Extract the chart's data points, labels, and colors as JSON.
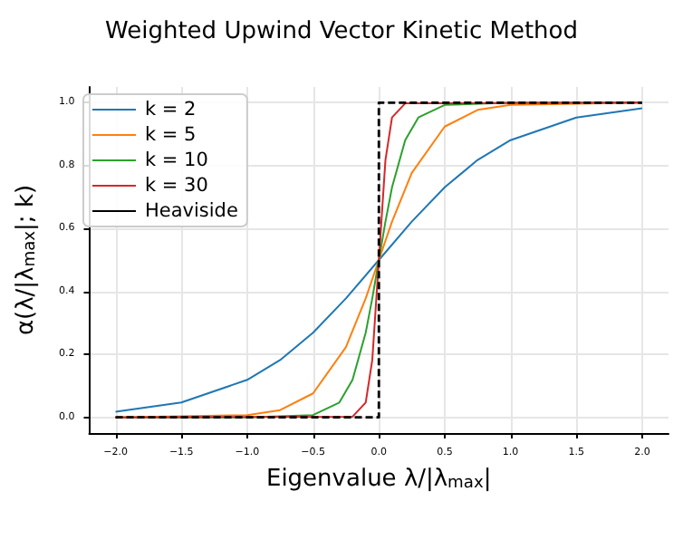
{
  "chart_data": {
    "type": "line",
    "title": "Weighted Upwind Vector Kinetic Method",
    "xlabel": "Eigenvalue λ/|λ$_{max}$|",
    "ylabel": "α(λ/|λ$_{max}$|; k)",
    "xlim": [
      -2.2,
      2.2
    ],
    "xticks": [
      {
        "value": -2,
        "label": "−2.0"
      },
      {
        "value": -1.5,
        "label": "−1.5"
      },
      {
        "value": -1,
        "label": "−1.0"
      },
      {
        "value": -0.5,
        "label": "−0.5"
      },
      {
        "value": 0,
        "label": "0.0"
      },
      {
        "value": 0.5,
        "label": "0.5"
      },
      {
        "value": 1,
        "label": "1.0"
      },
      {
        "value": 1.5,
        "label": "1.5"
      },
      {
        "value": 2,
        "label": "2.0"
      }
    ],
    "ylim": [
      -0.05,
      1.05
    ],
    "yticks": [
      {
        "value": 0,
        "label": "0.0"
      },
      {
        "value": 0.2,
        "label": "0.2"
      },
      {
        "value": 0.4,
        "label": "0.4"
      },
      {
        "value": 0.6,
        "label": "0.6"
      },
      {
        "value": 0.8,
        "label": "0.8"
      },
      {
        "value": 1,
        "label": "1.0"
      }
    ],
    "grid": true,
    "legend": "top left",
    "marker": "none",
    "series": [
      {
        "name": "k = 2",
        "color": "#1f77b4",
        "line_style": "solid",
        "x": [
          -2,
          -1.5,
          -1,
          -0.75,
          -0.5,
          -0.25,
          0,
          0.25,
          0.5,
          0.75,
          1,
          1.5,
          2
        ],
        "values": [
          0.018,
          0.047,
          0.119,
          0.182,
          0.269,
          0.378,
          0.5,
          0.622,
          0.731,
          0.818,
          0.881,
          0.953,
          0.982
        ]
      },
      {
        "name": "k = 5",
        "color": "#ff7f0e",
        "line_style": "solid",
        "x": [
          -2,
          -1,
          -0.75,
          -0.5,
          -0.25,
          -0.1,
          0,
          0.1,
          0.25,
          0.5,
          0.75,
          1,
          2
        ],
        "values": [
          0,
          0.007,
          0.023,
          0.076,
          0.223,
          0.378,
          0.5,
          0.622,
          0.777,
          0.924,
          0.977,
          0.993,
          1
        ]
      },
      {
        "name": "k = 10",
        "color": "#2ca02c",
        "line_style": "solid",
        "x": [
          -2,
          -1,
          -0.5,
          -0.3,
          -0.2,
          -0.1,
          -0.05,
          0,
          0.05,
          0.1,
          0.2,
          0.3,
          0.5,
          1,
          2
        ],
        "values": [
          0,
          0,
          0.007,
          0.047,
          0.119,
          0.269,
          0.378,
          0.5,
          0.622,
          0.731,
          0.881,
          0.953,
          0.993,
          1,
          1
        ]
      },
      {
        "name": "k = 30",
        "color": "#d62728",
        "line_style": "solid",
        "x": [
          -2,
          -0.2,
          -0.1,
          -0.05,
          0,
          0.05,
          0.1,
          0.2,
          2
        ],
        "values": [
          0,
          0.002,
          0.047,
          0.182,
          0.5,
          0.818,
          0.953,
          0.998,
          1
        ]
      },
      {
        "name": "Heaviside",
        "color": "#000000",
        "line_style": "dashed",
        "x": [
          -2,
          0,
          0,
          2
        ],
        "values": [
          0,
          0,
          1,
          1
        ]
      }
    ]
  }
}
